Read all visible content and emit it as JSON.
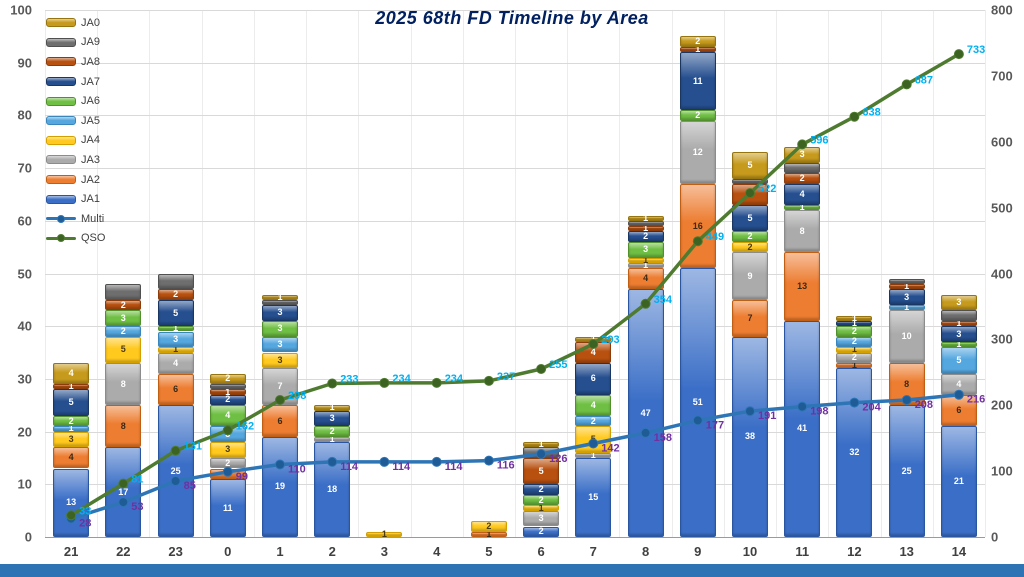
{
  "title": "2025 68th FD Timeline by Area",
  "chart_data": {
    "type": "bar",
    "subtype": "stacked-bar-with-cumulative-lines",
    "categories": [
      "21",
      "22",
      "23",
      "0",
      "1",
      "2",
      "3",
      "4",
      "5",
      "6",
      "7",
      "8",
      "9",
      "10",
      "11",
      "12",
      "13",
      "14"
    ],
    "series": [
      {
        "name": "JA1",
        "color": "#3b6fc7",
        "border": "#2a55a0",
        "label_color": "#ffffff",
        "show_labels": true,
        "values": [
          13,
          17,
          25,
          11,
          19,
          18,
          0,
          0,
          0,
          2,
          15,
          47,
          51,
          38,
          41,
          32,
          25,
          21
        ]
      },
      {
        "name": "JA2",
        "color": "#ed7d31",
        "border": "#c05f14",
        "label_color": "#3a2a16",
        "show_labels": true,
        "values": [
          4,
          8,
          6,
          2,
          6,
          0,
          0,
          0,
          1,
          0,
          0,
          4,
          16,
          7,
          13,
          1,
          8,
          6
        ]
      },
      {
        "name": "JA3",
        "color": "#ababab",
        "border": "#8c8c8c",
        "label_color": "#ffffff",
        "show_labels": true,
        "values": [
          0,
          8,
          4,
          2,
          7,
          1,
          0,
          0,
          0,
          3,
          1,
          1,
          12,
          9,
          8,
          2,
          10,
          4
        ]
      },
      {
        "name": "JA4",
        "color": "#ffc91e",
        "border": "#d3a000",
        "label_color": "#4a3a10",
        "show_labels": true,
        "values": [
          3,
          5,
          1,
          3,
          3,
          0,
          1,
          0,
          2,
          1,
          5,
          1,
          0,
          2,
          0,
          1,
          0,
          0
        ]
      },
      {
        "name": "JA5",
        "color": "#55a7df",
        "border": "#3a85bb",
        "label_color": "#ffffff",
        "show_labels": true,
        "values": [
          1,
          2,
          3,
          3,
          3,
          0,
          0,
          0,
          0,
          0,
          2,
          0,
          0,
          0,
          0,
          2,
          1,
          5
        ]
      },
      {
        "name": "JA6",
        "color": "#6fbf44",
        "border": "#52902e",
        "label_color": "#ffffff",
        "show_labels": true,
        "values": [
          2,
          3,
          1,
          4,
          3,
          2,
          0,
          0,
          0,
          2,
          4,
          3,
          2,
          2,
          1,
          2,
          0,
          1
        ]
      },
      {
        "name": "JA7",
        "color": "#264f8f",
        "border": "#1a3763",
        "label_color": "#ffffff",
        "show_labels": true,
        "values": [
          5,
          0,
          5,
          2,
          3,
          3,
          0,
          0,
          0,
          2,
          6,
          2,
          11,
          5,
          4,
          1,
          3,
          3
        ]
      },
      {
        "name": "JA8",
        "color": "#b8500f",
        "border": "#8c3c0a",
        "label_color": "#ffffff",
        "show_labels": true,
        "values": [
          1,
          2,
          2,
          1,
          0,
          0,
          0,
          0,
          0,
          5,
          4,
          1,
          1,
          4,
          2,
          0,
          1,
          1
        ]
      },
      {
        "name": "JA9",
        "color": "#6e6e6e",
        "border": "#505050",
        "label_color": "#ffffff",
        "show_labels": false,
        "values": [
          0,
          3,
          3,
          1,
          1,
          0,
          0,
          0,
          0,
          2,
          0,
          1,
          0,
          1,
          2,
          0,
          1,
          2
        ]
      },
      {
        "name": "JA0",
        "color": "#c69a1c",
        "border": "#96740f",
        "label_color": "#ffffff",
        "show_labels": true,
        "values": [
          4,
          0,
          0,
          2,
          1,
          1,
          0,
          0,
          0,
          1,
          1,
          1,
          2,
          5,
          3,
          1,
          0,
          3
        ]
      }
    ],
    "lines": [
      {
        "name": "Multi",
        "color": "#2e75b6",
        "marker_color": "#1f5c96",
        "label_color": "#7030a0",
        "axis": "right",
        "values": [
          28,
          53,
          85,
          99,
          110,
          114,
          114,
          114,
          116,
          126,
          142,
          158,
          177,
          191,
          198,
          204,
          208,
          216
        ]
      },
      {
        "name": "QSO",
        "color": "#4e7b2f",
        "marker_color": "#3d6323",
        "label_color": "#00b0f0",
        "axis": "right",
        "values": [
          33,
          81,
          131,
          162,
          208,
          233,
          234,
          234,
          237,
          255,
          293,
          354,
          449,
          522,
          596,
          638,
          687,
          733
        ]
      }
    ],
    "left_axis": {
      "min": 0,
      "max": 100,
      "step": 10
    },
    "right_axis": {
      "min": 0,
      "max": 800,
      "step": 100
    },
    "legend_order": [
      "JA0",
      "JA9",
      "JA8",
      "JA7",
      "JA6",
      "JA5",
      "JA4",
      "JA3",
      "JA2",
      "JA1",
      "Multi",
      "QSO"
    ],
    "legend_position": "top-left",
    "grid": true
  }
}
